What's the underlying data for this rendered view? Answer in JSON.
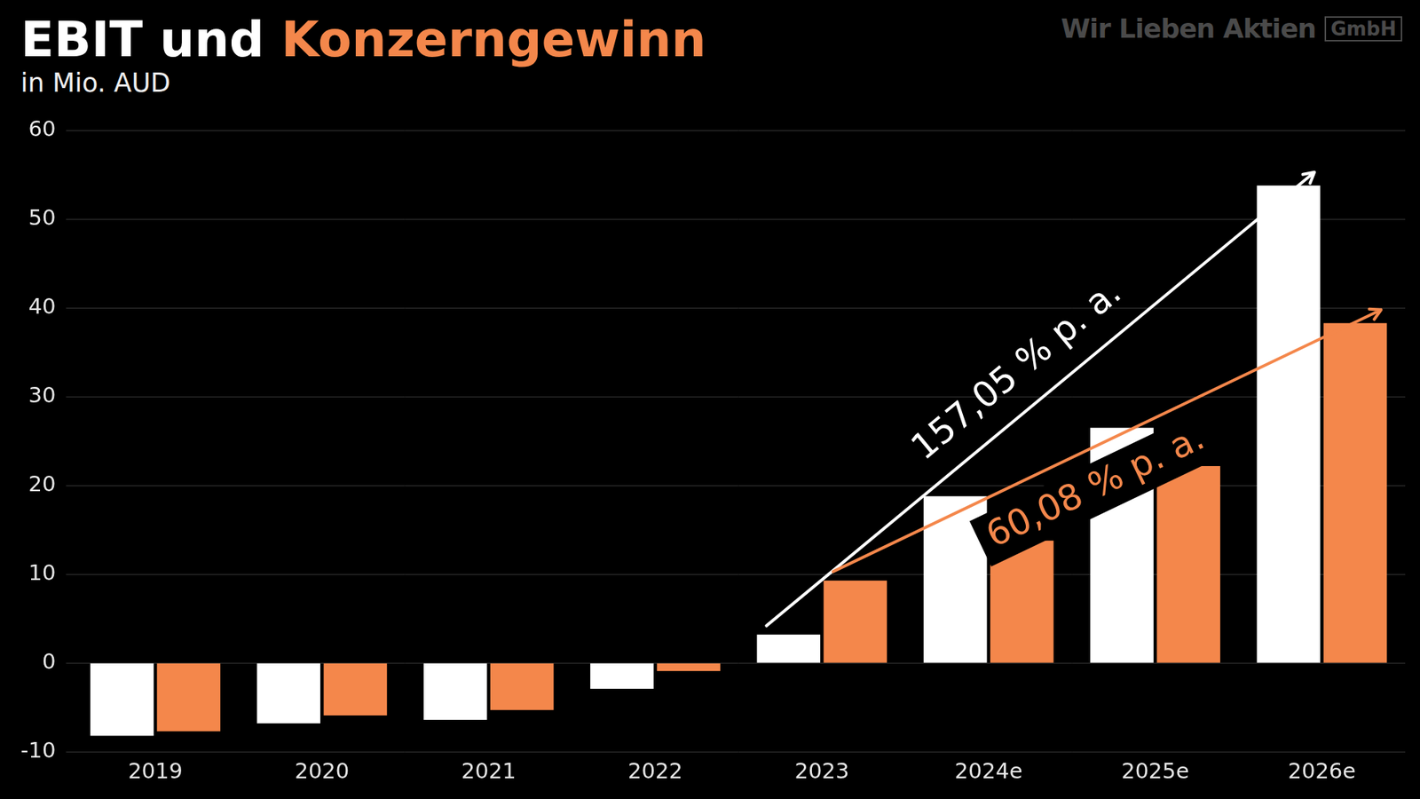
{
  "chart_data": {
    "type": "bar",
    "title": "EBIT und Konzerngewinn",
    "subtitle": "in Mio. AUD",
    "watermark": {
      "text": "Wir Lieben Aktien",
      "badge": "GmbH"
    },
    "categories": [
      "2019",
      "2020",
      "2021",
      "2022",
      "2023",
      "2024e",
      "2025e",
      "2026e"
    ],
    "series": [
      {
        "name": "EBIT",
        "color": "#ffffff",
        "values": [
          -8.2,
          -6.8,
          -6.4,
          -2.9,
          3.2,
          18.8,
          26.5,
          53.8
        ]
      },
      {
        "name": "Konzerngewinn",
        "color": "#f4874b",
        "values": [
          -7.7,
          -5.9,
          -5.3,
          -0.9,
          9.3,
          13.8,
          22.2,
          38.3
        ]
      }
    ],
    "annotations": [
      {
        "text": "157,05 % p. a.",
        "series": "EBIT",
        "from": "2023",
        "to": "2026e"
      },
      {
        "text": "60,08 % p. a.",
        "series": "Konzerngewinn",
        "from": "2023",
        "to": "2026e"
      }
    ],
    "ylim": [
      -10,
      60
    ],
    "yticks": [
      -10,
      0,
      10,
      20,
      30,
      40,
      50,
      60
    ],
    "grid": true,
    "legend": false
  }
}
